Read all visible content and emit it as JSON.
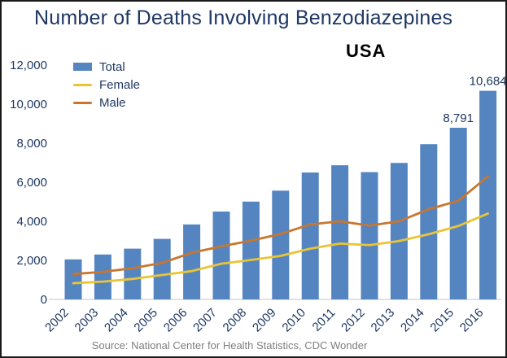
{
  "chart_data": {
    "type": "bar+line",
    "title": "Number of Deaths Involving Benzodiazepines",
    "subtitle": "USA",
    "source": "Source: National Center for Health Statistics, CDC Wonder",
    "categories": [
      "2002",
      "2003",
      "2004",
      "2005",
      "2006",
      "2007",
      "2008",
      "2009",
      "2010",
      "2011",
      "2012",
      "2013",
      "2014",
      "2015",
      "2016"
    ],
    "series": [
      {
        "name": "Total",
        "type": "bar",
        "color": "#5585C1",
        "values": [
          2050,
          2300,
          2600,
          3100,
          3840,
          4500,
          5010,
          5570,
          6500,
          6870,
          6520,
          6990,
          7950,
          8791,
          10684
        ]
      },
      {
        "name": "Female",
        "type": "line",
        "color": "#EAC434",
        "values": [
          830,
          910,
          1050,
          1250,
          1450,
          1830,
          2020,
          2230,
          2600,
          2860,
          2780,
          2990,
          3340,
          3760,
          4400
        ]
      },
      {
        "name": "Male",
        "type": "line",
        "color": "#C8762F",
        "values": [
          1300,
          1410,
          1600,
          1870,
          2390,
          2720,
          3010,
          3350,
          3840,
          4000,
          3780,
          4000,
          4620,
          5050,
          6300
        ]
      }
    ],
    "data_labels": [
      {
        "category": "2015",
        "text": "8,791"
      },
      {
        "category": "2016",
        "text": "10,684"
      }
    ],
    "xlabel": "",
    "ylabel": "",
    "ylim": [
      0,
      12000
    ],
    "ytick_step": 2000,
    "ytick_labels": [
      "0",
      "2,000",
      "4,000",
      "6,000",
      "8,000",
      "10,000",
      "12,000"
    ],
    "grid": false,
    "legend_position": "top-left"
  },
  "colors": {
    "title_text": "#1F3864",
    "subtitle_text": "#000000",
    "axis_text": "#1F3864",
    "source_text": "#7F7F7F",
    "axis_line": "#D9D9D9",
    "frame_border": "#1A1A1A",
    "background": "#FFFFFF"
  }
}
